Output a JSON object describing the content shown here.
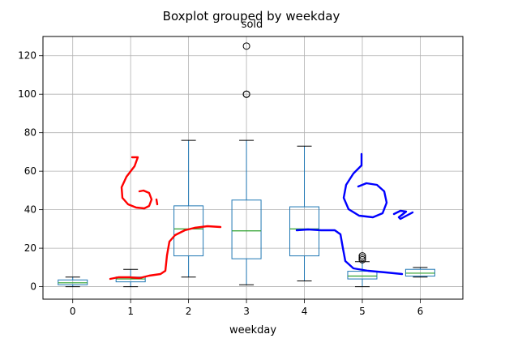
{
  "chart_data": {
    "type": "boxplot",
    "suptitle": "Boxplot grouped by weekday",
    "title": "sold",
    "xlabel": "weekday",
    "ylabel": "",
    "ylim": [
      -6.5,
      130
    ],
    "yticks": [
      0,
      20,
      40,
      60,
      80,
      100,
      120
    ],
    "grid": true,
    "categories": [
      "0",
      "1",
      "2",
      "3",
      "4",
      "5",
      "6"
    ],
    "boxes": [
      {
        "category": "0",
        "whislo": 0,
        "q1": 1,
        "med": 2,
        "q3": 3.5,
        "whishi": 5,
        "fliers": []
      },
      {
        "category": "1",
        "whislo": 0,
        "q1": 2.5,
        "med": 4,
        "q3": 5,
        "whishi": 9,
        "fliers": []
      },
      {
        "category": "2",
        "whislo": 5,
        "q1": 16,
        "med": 30,
        "q3": 42,
        "whishi": 76,
        "fliers": []
      },
      {
        "category": "3",
        "whislo": 1,
        "q1": 14.5,
        "med": 29,
        "q3": 45,
        "whishi": 76,
        "fliers": [
          100,
          100,
          125
        ]
      },
      {
        "category": "4",
        "whislo": 3,
        "q1": 16,
        "med": 30,
        "q3": 41.5,
        "whishi": 73,
        "fliers": []
      },
      {
        "category": "5",
        "whislo": 0,
        "q1": 4,
        "med": 5.5,
        "q3": 8,
        "whishi": 13,
        "fliers": [
          14,
          15,
          16
        ]
      },
      {
        "category": "6",
        "whislo": 5,
        "q1": 5.5,
        "med": 7,
        "q3": 9,
        "whishi": 10,
        "fliers": []
      }
    ],
    "colors": {
      "box": "#1f77b4",
      "median": "#2ca02c",
      "whisker": "#000000",
      "grid": "#b0b0b0",
      "annotation_red": "#ff0000",
      "annotation_blue": "#0000ff"
    }
  }
}
